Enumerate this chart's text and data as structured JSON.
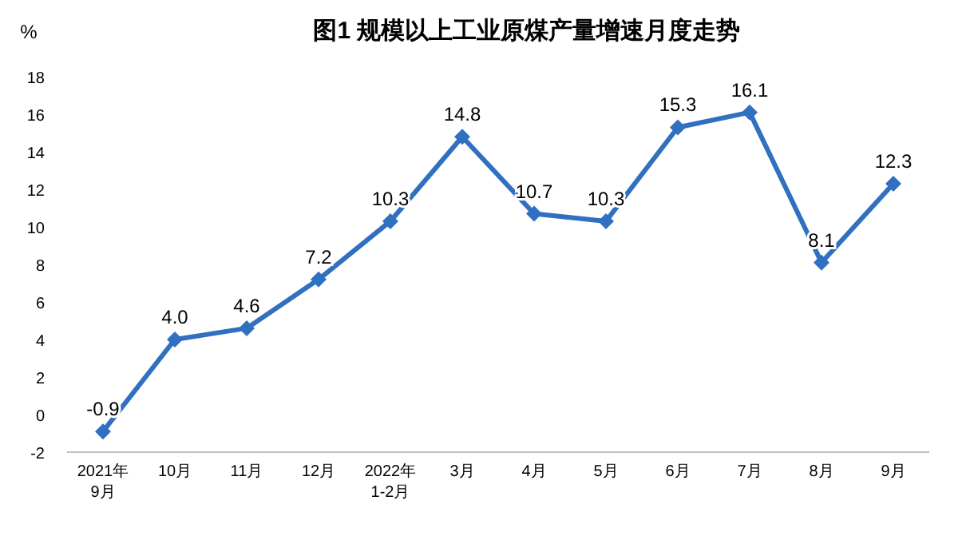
{
  "chart_data": {
    "type": "line",
    "title": "图1  规模以上工业原煤产量增速月度走势",
    "ylabel": "%",
    "categories": [
      "2021年\n9月",
      "10月",
      "11月",
      "12月",
      "2022年\n1-2月",
      "3月",
      "4月",
      "5月",
      "6月",
      "7月",
      "8月",
      "9月"
    ],
    "values": [
      -0.9,
      4.0,
      4.6,
      7.2,
      10.3,
      14.8,
      10.7,
      10.3,
      15.3,
      16.1,
      8.1,
      12.3
    ],
    "color": "#3170c0",
    "ylim": [
      -2,
      18
    ],
    "yticks": [
      -2,
      0,
      2,
      4,
      6,
      8,
      10,
      12,
      14,
      16,
      18
    ],
    "value_labels": [
      "-0.9",
      "4.0",
      "4.6",
      "7.2",
      "10.3",
      "14.8",
      "10.7",
      "10.3",
      "15.3",
      "16.1",
      "8.1",
      "12.3"
    ],
    "marker": "diamond",
    "line_style": "solid"
  }
}
